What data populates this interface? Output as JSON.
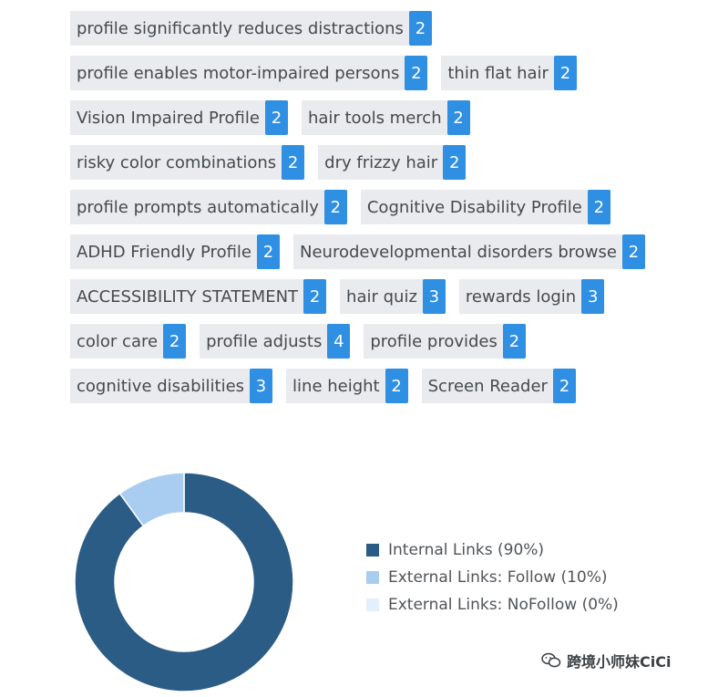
{
  "tag_rows": [
    [
      {
        "label": "profile significantly reduces distractions",
        "count": "2"
      }
    ],
    [
      {
        "label": "profile enables motor-impaired persons",
        "count": "2"
      },
      {
        "label": "thin flat hair",
        "count": "2"
      }
    ],
    [
      {
        "label": "Vision Impaired Profile",
        "count": "2"
      },
      {
        "label": "hair tools merch",
        "count": "2"
      }
    ],
    [
      {
        "label": "risky color combinations",
        "count": "2"
      },
      {
        "label": "dry frizzy hair",
        "count": "2"
      }
    ],
    [
      {
        "label": "profile prompts automatically",
        "count": "2"
      },
      {
        "label": "Cognitive Disability Profile",
        "count": "2"
      }
    ],
    [
      {
        "label": "ADHD Friendly Profile",
        "count": "2"
      },
      {
        "label": "Neurodevelopmental disorders browse",
        "count": "2"
      }
    ],
    [
      {
        "label": "ACCESSIBILITY STATEMENT",
        "count": "2"
      },
      {
        "label": "hair quiz",
        "count": "3"
      },
      {
        "label": "rewards login",
        "count": "3"
      }
    ],
    [
      {
        "label": "color care",
        "count": "2"
      },
      {
        "label": "profile adjusts",
        "count": "4"
      },
      {
        "label": "profile provides",
        "count": "2"
      }
    ],
    [
      {
        "label": "cognitive disabilities",
        "count": "3"
      },
      {
        "label": "line height",
        "count": "2"
      },
      {
        "label": "Screen Reader",
        "count": "2"
      }
    ]
  ],
  "chart_data": {
    "type": "pie",
    "donut": true,
    "title": "",
    "slices": [
      {
        "label": "Internal Links (90%)",
        "value": 90,
        "color": "#2b5c85"
      },
      {
        "label": "External Links: Follow (10%)",
        "value": 10,
        "color": "#a9cdf1"
      },
      {
        "label": "External Links: NoFollow (0%)",
        "value": 0,
        "color": "#e3f0fc"
      }
    ],
    "legend_position": "right"
  },
  "watermark": {
    "text": "跨境小师妹CiCi",
    "icon": "wechat-icon"
  }
}
